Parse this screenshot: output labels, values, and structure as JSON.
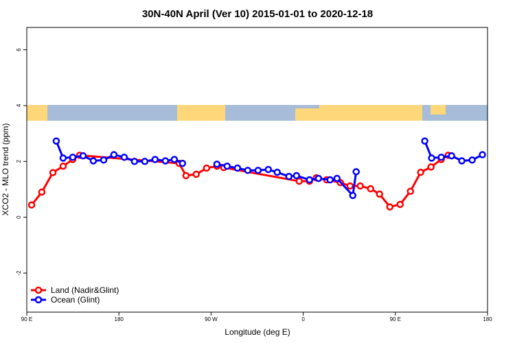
{
  "chart_data": {
    "type": "line",
    "title": "30N-40N April (Ver 10)   2015-01-01 to 2020-12-18",
    "xlabel": "Longitude (deg E)",
    "ylabel": "XCO2 - MLO trend (ppm)",
    "xlim": [
      90,
      540
    ],
    "xticks": [
      {
        "value": 90,
        "label": "90 E"
      },
      180,
      {
        "value": 270,
        "label": "90 W"
      },
      {
        "value": 360,
        "label": "0"
      },
      {
        "value": 450,
        "label": "90 E"
      },
      {
        "value": 540,
        "label": "180"
      }
    ],
    "ylim": [
      -3.4,
      6.8
    ],
    "yticks": [
      -2,
      0,
      2,
      4,
      6
    ],
    "legend": "bottom-left",
    "series": [
      {
        "name": "Land (Nadir&Glint)",
        "color": "#ff0000",
        "x": [
          94.7,
          104.7,
          115.5,
          125.5,
          134.9,
          141.6,
          238.8,
          245.5,
          255.5,
          265.6,
          275.7,
          282.4,
          356.1,
          366.1,
          372.8,
          382.9,
          396.3,
          405.7,
          415.7,
          425.8,
          434.5,
          444.6,
          454.6,
          464.7,
          474.7,
          484.8,
          494.8,
          501.5
        ],
        "values": [
          0.44,
          0.9,
          1.6,
          1.83,
          2.07,
          2.22,
          1.93,
          1.49,
          1.54,
          1.76,
          1.83,
          1.78,
          1.29,
          1.29,
          1.41,
          1.34,
          1.24,
          1.12,
          1.12,
          1.02,
          0.83,
          0.37,
          0.46,
          0.93,
          1.61,
          1.8,
          2.07,
          2.22
        ]
      },
      {
        "name": "Ocean (Glint)",
        "color": "#0000ff",
        "x": [
          118.8,
          125.5,
          134.9,
          145.0,
          155.0,
          165.1,
          175.1,
          185.2,
          195.2,
          205.3,
          215.3,
          225.4,
          234.1,
          242.1,
          null,
          275.7,
          285.7,
          295.8,
          305.8,
          315.9,
          325.9,
          334.6,
          346.0,
          353.4,
          366.1,
          374.9,
          386.2,
          393.0,
          408.4,
          411.7,
          null,
          478.7,
          485.4,
          494.8,
          504.9,
          514.9,
          525.0,
          535.0
        ],
        "values": [
          2.73,
          2.12,
          2.15,
          2.2,
          2.02,
          2.05,
          2.24,
          2.15,
          2.0,
          2.0,
          2.07,
          2.02,
          2.07,
          1.93,
          null,
          1.9,
          1.83,
          1.76,
          1.68,
          1.68,
          1.71,
          1.61,
          1.46,
          1.49,
          1.34,
          1.39,
          1.34,
          1.39,
          0.78,
          1.63,
          null,
          2.73,
          2.12,
          2.15,
          2.2,
          2.02,
          2.05,
          2.24
        ]
      }
    ]
  }
}
